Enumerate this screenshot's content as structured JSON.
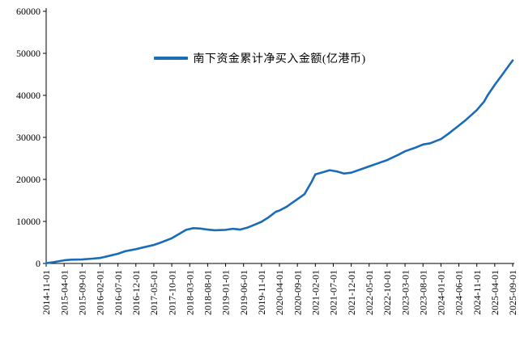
{
  "chart_data": {
    "type": "line",
    "legend": "南下资金累计净买入金额(亿港币)",
    "line_color": "#1a6cb8",
    "axis_color": "#000000",
    "background": "#ffffff",
    "grid": false,
    "legend_position": "top-center",
    "ylim": [
      0,
      60000
    ],
    "yticks": [
      0,
      10000,
      20000,
      30000,
      40000,
      50000,
      60000
    ],
    "xtick_labels": [
      "2014-11-01",
      "2015-04-01",
      "2015-09-01",
      "2016-02-01",
      "2016-07-01",
      "2016-12-01",
      "2017-05-01",
      "2017-10-01",
      "2018-03-01",
      "2018-08-01",
      "2019-01-01",
      "2019-06-01",
      "2019-11-01",
      "2020-04-01",
      "2020-09-01",
      "2021-02-01",
      "2021-07-01",
      "2021-12-01",
      "2022-05-01",
      "2022-10-01",
      "2023-03-01",
      "2023-08-01",
      "2024-01-01",
      "2024-06-01",
      "2024-11-01",
      "2025-04-01",
      "2025-09-01"
    ],
    "series": [
      {
        "name": "南下资金累计净买入金额(亿港币)",
        "points": [
          [
            "2014-11-01",
            50
          ],
          [
            "2015-01-01",
            300
          ],
          [
            "2015-04-01",
            750
          ],
          [
            "2015-06-01",
            900
          ],
          [
            "2015-09-01",
            950
          ],
          [
            "2015-12-01",
            1150
          ],
          [
            "2016-02-01",
            1300
          ],
          [
            "2016-04-01",
            1700
          ],
          [
            "2016-07-01",
            2300
          ],
          [
            "2016-09-01",
            2900
          ],
          [
            "2016-12-01",
            3400
          ],
          [
            "2017-02-01",
            3800
          ],
          [
            "2017-05-01",
            4400
          ],
          [
            "2017-07-01",
            5000
          ],
          [
            "2017-10-01",
            6000
          ],
          [
            "2017-12-01",
            7000
          ],
          [
            "2018-02-01",
            8000
          ],
          [
            "2018-04-01",
            8400
          ],
          [
            "2018-06-01",
            8300
          ],
          [
            "2018-08-01",
            8050
          ],
          [
            "2018-10-01",
            7900
          ],
          [
            "2019-01-01",
            8000
          ],
          [
            "2019-03-01",
            8250
          ],
          [
            "2019-05-01",
            8050
          ],
          [
            "2019-07-01",
            8500
          ],
          [
            "2019-09-01",
            9200
          ],
          [
            "2019-11-01",
            9900
          ],
          [
            "2020-01-01",
            11000
          ],
          [
            "2020-03-01",
            12300
          ],
          [
            "2020-04-01",
            12600
          ],
          [
            "2020-06-01",
            13500
          ],
          [
            "2020-09-01",
            15300
          ],
          [
            "2020-11-01",
            16500
          ],
          [
            "2021-01-01",
            19500
          ],
          [
            "2021-02-01",
            21200
          ],
          [
            "2021-04-01",
            21700
          ],
          [
            "2021-06-01",
            22200
          ],
          [
            "2021-08-01",
            21900
          ],
          [
            "2021-10-01",
            21400
          ],
          [
            "2021-12-01",
            21600
          ],
          [
            "2022-03-01",
            22500
          ],
          [
            "2022-05-01",
            23100
          ],
          [
            "2022-08-01",
            24000
          ],
          [
            "2022-10-01",
            24600
          ],
          [
            "2023-01-01",
            25800
          ],
          [
            "2023-03-01",
            26700
          ],
          [
            "2023-06-01",
            27600
          ],
          [
            "2023-08-01",
            28300
          ],
          [
            "2023-10-01",
            28600
          ],
          [
            "2024-01-01",
            29600
          ],
          [
            "2024-03-01",
            30800
          ],
          [
            "2024-06-01",
            32800
          ],
          [
            "2024-08-01",
            34200
          ],
          [
            "2024-11-01",
            36500
          ],
          [
            "2025-01-01",
            38500
          ],
          [
            "2025-02-01",
            40000
          ],
          [
            "2025-04-01",
            42500
          ],
          [
            "2025-06-01",
            44800
          ],
          [
            "2025-08-01",
            47200
          ],
          [
            "2025-09-01",
            48300
          ]
        ]
      }
    ]
  }
}
